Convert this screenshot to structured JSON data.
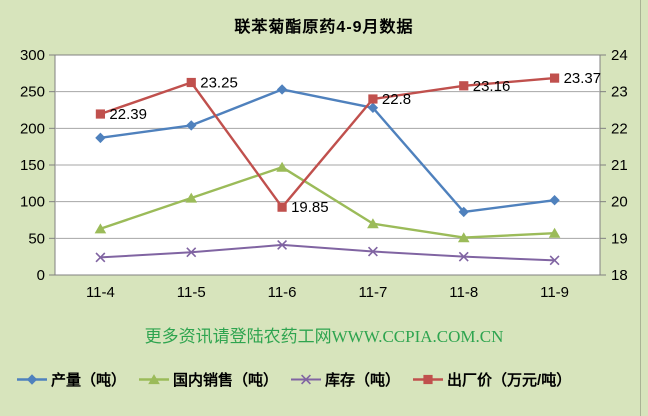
{
  "colors": {
    "background": "#D7E4BC",
    "plot_background": "#FFFFFF",
    "gridline": "#A6A6A6",
    "axis_line": "#808080",
    "text": "#000000",
    "watermark_green": "#2EA44F",
    "series_blue": "#4F81BD",
    "series_green": "#9BBB59",
    "series_purple": "#8064A2",
    "series_red": "#C0504D"
  },
  "watermark": {
    "text": "更多资讯请登陆农药工网WWW.CCPIA.COM.CN"
  },
  "chart_data": {
    "type": "line",
    "title": "联苯菊酯原药4-9月数据",
    "categories": [
      "11-4",
      "11-5",
      "11-6",
      "11-7",
      "11-8",
      "11-9"
    ],
    "left_axis": {
      "min": 0,
      "max": 300,
      "step": 50,
      "tick_labels": [
        "300",
        "250",
        "200",
        "150",
        "100",
        "50",
        "0"
      ]
    },
    "right_axis": {
      "min": 18,
      "max": 24,
      "step": 1,
      "tick_labels": [
        "24",
        "23",
        "22",
        "21",
        "20",
        "19",
        "18"
      ]
    },
    "grid": true,
    "legend_position": "bottom",
    "series": [
      {
        "key": "production",
        "name": "产量（吨）",
        "axis": "left",
        "color": "#4F81BD",
        "marker": "diamond",
        "values": [
          187,
          204,
          253,
          228,
          86,
          102
        ]
      },
      {
        "key": "domestic-sales",
        "name": "国内销售（吨）",
        "axis": "left",
        "color": "#9BBB59",
        "marker": "triangle",
        "values": [
          63,
          105,
          147,
          70,
          51,
          57
        ]
      },
      {
        "key": "inventory",
        "name": "库存（吨）",
        "axis": "left",
        "color": "#8064A2",
        "marker": "x",
        "values": [
          24,
          31,
          41,
          32,
          25,
          20
        ]
      },
      {
        "key": "price",
        "name": "出厂价（万元/吨）",
        "axis": "right",
        "color": "#C0504D",
        "marker": "square",
        "values": [
          22.39,
          23.25,
          19.85,
          22.8,
          23.16,
          23.37
        ],
        "data_labels": [
          "22.39",
          "23.25",
          "19.85",
          "22.8",
          "23.16",
          "23.37"
        ]
      }
    ]
  }
}
